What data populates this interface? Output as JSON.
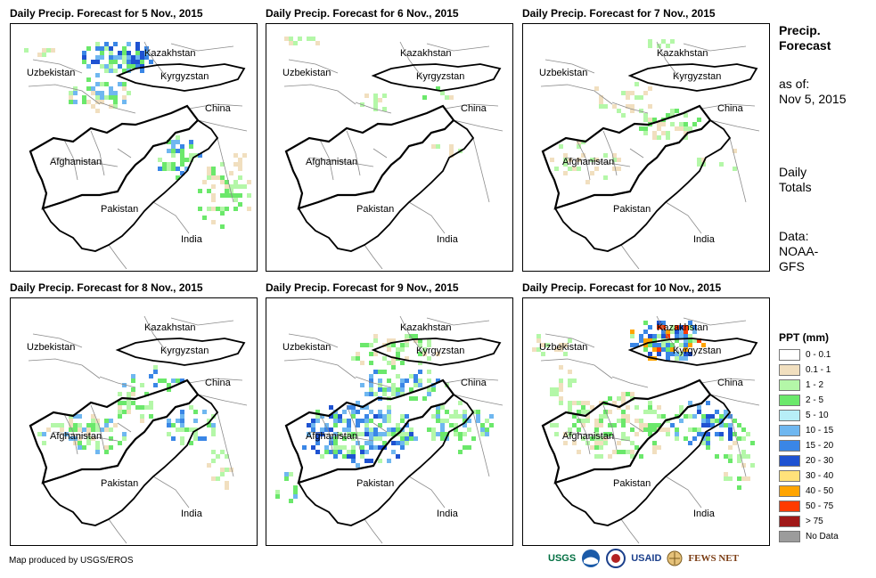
{
  "panels": [
    {
      "title": "Daily Precip. Forecast for 5 Nov., 2015"
    },
    {
      "title": "Daily Precip. Forecast for 6 Nov., 2015"
    },
    {
      "title": "Daily Precip. Forecast for 7 Nov., 2015"
    },
    {
      "title": "Daily Precip. Forecast for 8 Nov., 2015"
    },
    {
      "title": "Daily Precip. Forecast for 9 Nov., 2015"
    },
    {
      "title": "Daily Precip. Forecast for 10 Nov., 2015"
    }
  ],
  "map_labels": {
    "kazakhstan": "Kazakhstan",
    "uzbekistan": "Uzbekistan",
    "kyrgyzstan": "Kyrgyzstan",
    "china": "China",
    "afghanistan": "Afghanistan",
    "pakistan": "Pakistan",
    "india": "India"
  },
  "side": {
    "heading_line1": "Precip.",
    "heading_line2": "Forecast",
    "asof_label": "as of:",
    "asof_date": "Nov 5, 2015",
    "totals_line1": "Daily",
    "totals_line2": "Totals",
    "data_line1": "Data:",
    "data_line2": "NOAA-",
    "data_line3": "GFS"
  },
  "legend": {
    "title": "PPT (mm)",
    "items": [
      {
        "label": "0 - 0.1",
        "color": "#ffffff"
      },
      {
        "label": "0.1 - 1",
        "color": "#f1dfbf"
      },
      {
        "label": "1 - 2",
        "color": "#b4f7a8"
      },
      {
        "label": "2 - 5",
        "color": "#6be86b"
      },
      {
        "label": "5 - 10",
        "color": "#b7eef7"
      },
      {
        "label": "10 - 15",
        "color": "#6fb7f0"
      },
      {
        "label": "15 - 20",
        "color": "#3a86e6"
      },
      {
        "label": "20 - 30",
        "color": "#1e52d1"
      },
      {
        "label": "30 - 40",
        "color": "#ffe27a"
      },
      {
        "label": "40 - 50",
        "color": "#ffa400"
      },
      {
        "label": "50 - 75",
        "color": "#ff3b00"
      },
      {
        "label": "> 75",
        "color": "#a01818"
      },
      {
        "label": "No Data",
        "color": "#9c9c9c"
      }
    ]
  },
  "credit": "Map produced by USGS/EROS",
  "logos": {
    "usgs": "USGS",
    "usaid": "USAID",
    "fewsnet": "FEWS NET"
  }
}
